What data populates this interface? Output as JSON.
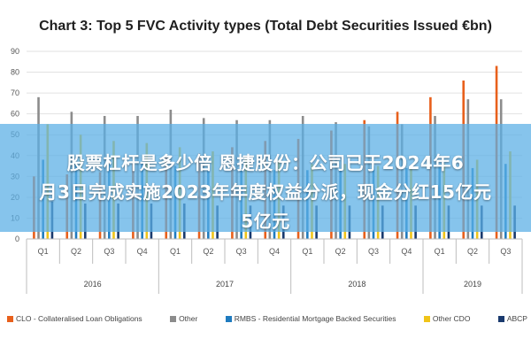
{
  "chart_data": {
    "type": "bar",
    "title": "Chart 3: Top 5 FVC Activity types (Total Debt Securities Issued €bn)",
    "ylim": [
      0,
      90
    ],
    "yticks": [
      0,
      10,
      20,
      30,
      40,
      50,
      60,
      70,
      80,
      90
    ],
    "grid": true,
    "legend_position": "bottom",
    "groups": [
      {
        "label": "2016",
        "count": 4
      },
      {
        "label": "2017",
        "count": 4
      },
      {
        "label": "2018",
        "count": 4
      },
      {
        "label": "2019",
        "count": 3
      }
    ],
    "categories": [
      "Q1",
      "Q2",
      "Q3",
      "Q4",
      "Q1",
      "Q2",
      "Q3",
      "Q4",
      "Q1",
      "Q2",
      "Q3",
      "Q4",
      "Q1",
      "Q2",
      "Q3"
    ],
    "series": [
      {
        "name": "CLO - Collateralised Loan Obligations",
        "color": "#e8601c",
        "values": [
          30,
          31,
          32,
          36,
          40,
          41,
          44,
          47,
          48,
          52,
          57,
          61,
          68,
          76,
          83
        ]
      },
      {
        "name": "Other",
        "color": "#8c8c8c",
        "values": [
          68,
          61,
          59,
          59,
          62,
          58,
          57,
          57,
          59,
          56,
          54,
          55,
          59,
          67,
          67
        ]
      },
      {
        "name": "RMBS - Residential Mortgage Backed Securities",
        "color": "#1f7bbf",
        "values": [
          38,
          37,
          36,
          36,
          35,
          34,
          34,
          33,
          33,
          34,
          35,
          34,
          35,
          34,
          36
        ]
      },
      {
        "name": "Other CDO",
        "color": "#f0c419",
        "values": [
          55,
          50,
          47,
          46,
          44,
          42,
          40,
          38,
          36,
          36,
          35,
          34,
          36,
          38,
          42
        ]
      },
      {
        "name": "ABCP",
        "color": "#1a3a6e",
        "values": [
          18,
          17,
          17,
          17,
          17,
          16,
          16,
          16,
          16,
          16,
          16,
          16,
          16,
          16,
          16
        ]
      }
    ]
  },
  "overlay": {
    "line1": "股票杠杆是多少倍 恩捷股份：公司已于2024年6",
    "line2": "月3日完成实施2023年年度权益分派，现金分红15亿元",
    "line3": "5亿元"
  }
}
